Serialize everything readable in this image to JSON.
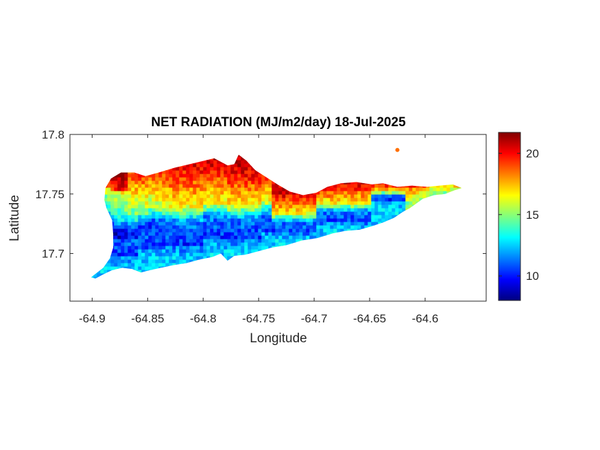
{
  "chart_data": {
    "type": "heatmap",
    "title": "NET RADIATION (MJ/m2/day) 18-Jul-2025",
    "xlabel": "Longitude",
    "ylabel": "Latitude",
    "xlim": [
      -64.92,
      -64.545
    ],
    "ylim": [
      17.66,
      17.8
    ],
    "x_ticks": [
      {
        "value": -64.9,
        "label": "-64.9"
      },
      {
        "value": -64.85,
        "label": "-64.85"
      },
      {
        "value": -64.8,
        "label": "-64.8"
      },
      {
        "value": -64.75,
        "label": "-64.75"
      },
      {
        "value": -64.7,
        "label": "-64.7"
      },
      {
        "value": -64.65,
        "label": "-64.65"
      },
      {
        "value": -64.6,
        "label": "-64.6"
      }
    ],
    "y_ticks": [
      {
        "value": 17.7,
        "label": "17.7"
      },
      {
        "value": 17.75,
        "label": "17.75"
      },
      {
        "value": 17.8,
        "label": "17.8"
      }
    ],
    "colorbar": {
      "colormap": "jet",
      "limits": [
        8,
        21.7
      ],
      "ticks": [
        {
          "value": 10,
          "label": "10"
        },
        {
          "value": 15,
          "label": "15"
        },
        {
          "value": 20,
          "label": "20"
        }
      ]
    },
    "grid": false,
    "region": {
      "outline": [
        [
          -64.901,
          17.68
        ],
        [
          -64.89,
          17.688
        ],
        [
          -64.884,
          17.696
        ],
        [
          -64.881,
          17.705
        ],
        [
          -64.881,
          17.716
        ],
        [
          -64.882,
          17.728
        ],
        [
          -64.887,
          17.738
        ],
        [
          -64.889,
          17.745
        ],
        [
          -64.888,
          17.755
        ],
        [
          -64.883,
          17.763
        ],
        [
          -64.874,
          17.768
        ],
        [
          -64.862,
          17.768
        ],
        [
          -64.852,
          17.765
        ],
        [
          -64.84,
          17.768
        ],
        [
          -64.826,
          17.772
        ],
        [
          -64.808,
          17.776
        ],
        [
          -64.79,
          17.78
        ],
        [
          -64.778,
          17.774
        ],
        [
          -64.772,
          17.775
        ],
        [
          -64.768,
          17.783
        ],
        [
          -64.761,
          17.778
        ],
        [
          -64.753,
          17.77
        ],
        [
          -64.743,
          17.764
        ],
        [
          -64.733,
          17.758
        ],
        [
          -64.722,
          17.752
        ],
        [
          -64.71,
          17.749
        ],
        [
          -64.698,
          17.751
        ],
        [
          -64.688,
          17.756
        ],
        [
          -64.676,
          17.759
        ],
        [
          -64.662,
          17.76
        ],
        [
          -64.648,
          17.758
        ],
        [
          -64.638,
          17.759
        ],
        [
          -64.625,
          17.756
        ],
        [
          -64.612,
          17.757
        ],
        [
          -64.598,
          17.756
        ],
        [
          -64.587,
          17.757
        ],
        [
          -64.575,
          17.758
        ],
        [
          -64.567,
          17.755
        ],
        [
          -64.574,
          17.753
        ],
        [
          -64.582,
          17.75
        ],
        [
          -64.592,
          17.749
        ],
        [
          -64.602,
          17.746
        ],
        [
          -64.608,
          17.742
        ],
        [
          -64.614,
          17.738
        ],
        [
          -64.62,
          17.735
        ],
        [
          -64.628,
          17.73
        ],
        [
          -64.638,
          17.726
        ],
        [
          -64.648,
          17.723
        ],
        [
          -64.659,
          17.72
        ],
        [
          -64.672,
          17.719
        ],
        [
          -64.683,
          17.717
        ],
        [
          -64.697,
          17.713
        ],
        [
          -64.711,
          17.711
        ],
        [
          -64.725,
          17.707
        ],
        [
          -64.738,
          17.705
        ],
        [
          -64.75,
          17.702
        ],
        [
          -64.762,
          17.699
        ],
        [
          -64.772,
          17.698
        ],
        [
          -64.778,
          17.694
        ],
        [
          -64.784,
          17.7
        ],
        [
          -64.792,
          17.697
        ],
        [
          -64.803,
          17.695
        ],
        [
          -64.815,
          17.692
        ],
        [
          -64.828,
          17.69
        ],
        [
          -64.838,
          17.688
        ],
        [
          -64.848,
          17.686
        ],
        [
          -64.856,
          17.684
        ],
        [
          -64.864,
          17.687
        ],
        [
          -64.873,
          17.688
        ],
        [
          -64.882,
          17.686
        ],
        [
          -64.889,
          17.683
        ],
        [
          -64.897,
          17.679
        ]
      ],
      "islet": {
        "lon": -64.625,
        "lat": 17.787,
        "value": 18.5
      }
    }
  }
}
